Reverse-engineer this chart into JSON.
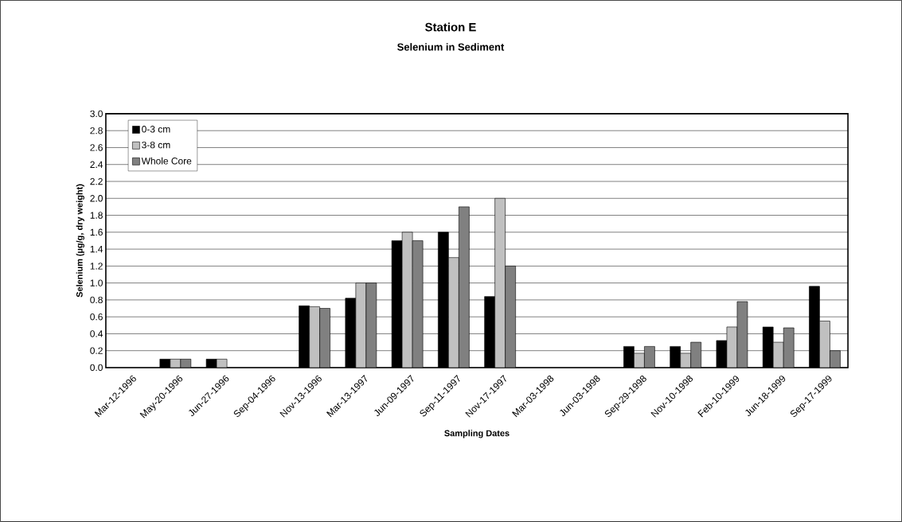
{
  "chart_data": {
    "type": "bar",
    "title": "Station E",
    "subtitle": "Selenium in Sediment",
    "xlabel": "Sampling Dates",
    "ylabel": "Selenium (µg/g, dry weight)",
    "categories": [
      "Mar-12-1996",
      "May-20-1996",
      "Jun-27-1996",
      "Sep-04-1996",
      "Nov-13-1996",
      "Mar-13-1997",
      "Jun-09-1997",
      "Sep-11-1997",
      "Nov-17-1997",
      "Mar-03-1998",
      "Jun-03-1998",
      "Sep-29-1998",
      "Nov-10-1998",
      "Feb-10-1999",
      "Jun-18-1999",
      "Sep-17-1999"
    ],
    "series": [
      {
        "name": "0-3 cm",
        "color": "#000000",
        "values": [
          null,
          0.1,
          0.1,
          null,
          0.73,
          0.82,
          1.5,
          1.6,
          0.84,
          null,
          null,
          0.25,
          0.25,
          0.32,
          0.48,
          0.96
        ]
      },
      {
        "name": "3-8 cm",
        "color": "#c0c0c0",
        "values": [
          null,
          0.1,
          0.1,
          null,
          0.72,
          1.0,
          1.6,
          1.3,
          2.0,
          null,
          null,
          0.17,
          0.17,
          0.48,
          0.3,
          0.55
        ]
      },
      {
        "name": "Whole Core",
        "color": "#808080",
        "values": [
          null,
          0.1,
          null,
          null,
          0.7,
          1.0,
          1.5,
          1.9,
          1.2,
          null,
          null,
          0.25,
          0.3,
          0.78,
          0.47,
          0.2
        ]
      }
    ],
    "ylim": [
      0,
      3.0
    ],
    "yticks": [
      {
        "value": 0,
        "label": "0.0"
      },
      {
        "value": 0.2,
        "label": "0.2"
      },
      {
        "value": 0.4,
        "label": "0.4"
      },
      {
        "value": 0.6,
        "label": "0.6"
      },
      {
        "value": 0.8,
        "label": "0.8"
      },
      {
        "value": 1.0,
        "label": "1.0"
      },
      {
        "value": 1.2,
        "label": "1.2"
      },
      {
        "value": 1.4,
        "label": "1.4"
      },
      {
        "value": 1.6,
        "label": "1.6"
      },
      {
        "value": 1.8,
        "label": "1.8"
      },
      {
        "value": 2.0,
        "label": "2.0"
      },
      {
        "value": 2.2,
        "label": "2.2"
      },
      {
        "value": 2.4,
        "label": "2.4"
      },
      {
        "value": 2.6,
        "label": "2.6"
      },
      {
        "value": 2.8,
        "label": "2.8"
      },
      {
        "value": 3.0,
        "label": "3.0"
      }
    ],
    "grid": "y",
    "legend": "top left"
  }
}
